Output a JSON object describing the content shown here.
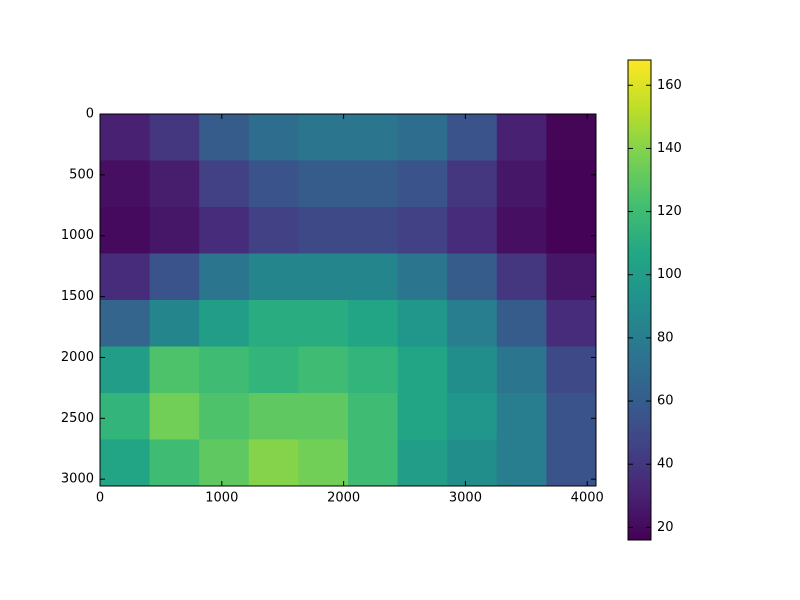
{
  "chart_data": {
    "type": "heatmap",
    "colormap": "viridis",
    "xlim": [
      0,
      4072
    ],
    "ylim": [
      3056,
      0
    ],
    "xticks": [
      0,
      1000,
      2000,
      3000,
      4000
    ],
    "yticks": [
      0,
      500,
      1000,
      1500,
      2000,
      2500,
      3000
    ],
    "clim": [
      16,
      168
    ],
    "cticks": [
      20,
      40,
      60,
      80,
      100,
      120,
      140,
      160
    ],
    "values": [
      [
        30,
        40,
        60,
        70,
        75,
        75,
        70,
        55,
        30,
        18
      ],
      [
        22,
        28,
        45,
        55,
        60,
        60,
        55,
        40,
        25,
        17
      ],
      [
        20,
        25,
        35,
        45,
        50,
        50,
        45,
        35,
        22,
        17
      ],
      [
        35,
        55,
        75,
        85,
        85,
        85,
        75,
        60,
        40,
        25
      ],
      [
        65,
        85,
        100,
        110,
        110,
        105,
        95,
        80,
        60,
        35
      ],
      [
        100,
        125,
        120,
        115,
        120,
        115,
        105,
        90,
        75,
        50
      ],
      [
        115,
        135,
        125,
        130,
        130,
        120,
        105,
        95,
        80,
        55
      ],
      [
        105,
        120,
        130,
        140,
        135,
        120,
        100,
        90,
        80,
        55
      ]
    ]
  }
}
